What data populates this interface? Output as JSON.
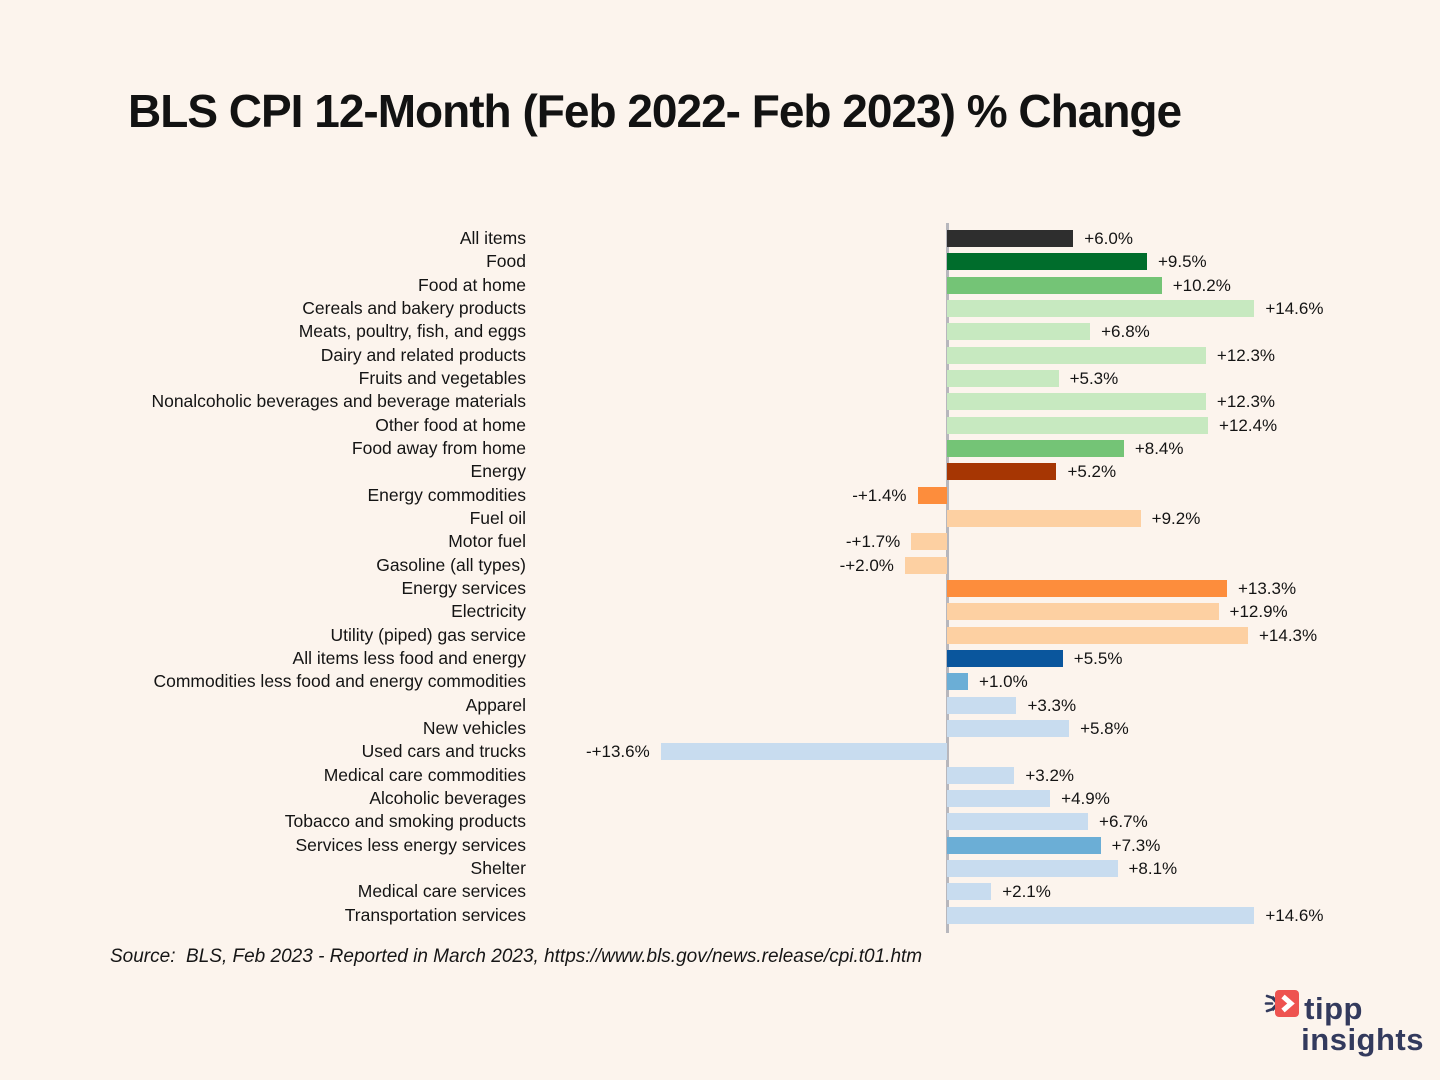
{
  "title": "BLS CPI 12-Month (Feb 2022- Feb 2023) % Change",
  "source": "Source:  BLS, Feb 2023 - Reported in March 2023, https://www.bls.gov/news.release/cpi.t01.htm",
  "logo": {
    "line1": "tipp",
    "line2": "insights",
    "icon": "fast-forward-arrow-icon",
    "icon_color": "#ee5350",
    "text_color": "#333a5d"
  },
  "colors": {
    "background": "#fcf4ed",
    "baseline": "#b7b7bd",
    "all_items_gray": "#2e2e2e",
    "dark_green": "#006d2c",
    "medium_green": "#74c476",
    "light_green": "#c7e9c0",
    "dark_orange": "#a63603",
    "medium_orange": "#fd8d3c",
    "light_orange": "#fdd0a2",
    "dark_blue": "#0a569d",
    "medium_blue": "#6baed6",
    "light_blue": "#c8dcef"
  },
  "chart_data": {
    "type": "bar",
    "orientation": "horizontal",
    "unit": "%",
    "title": "BLS CPI 12-Month (Feb 2022- Feb 2023) % Change",
    "xlabel": "",
    "ylabel": "",
    "xlim": [
      -14.5,
      15
    ],
    "baseline_value": 0,
    "grid": false,
    "legend": "none",
    "rows": [
      {
        "label": "All items",
        "value": 6.0,
        "display": "+6.0%",
        "color": "#2e2e2e"
      },
      {
        "label": "Food",
        "value": 9.5,
        "display": "+9.5%",
        "color": "#006d2c"
      },
      {
        "label": "Food at home",
        "value": 10.2,
        "display": "+10.2%",
        "color": "#74c476"
      },
      {
        "label": "Cereals and bakery products",
        "value": 14.6,
        "display": "+14.6%",
        "color": "#c7e9c0"
      },
      {
        "label": "Meats, poultry, fish, and eggs",
        "value": 6.8,
        "display": "+6.8%",
        "color": "#c7e9c0"
      },
      {
        "label": "Dairy and related products",
        "value": 12.3,
        "display": "+12.3%",
        "color": "#c7e9c0"
      },
      {
        "label": "Fruits and vegetables",
        "value": 5.3,
        "display": "+5.3%",
        "color": "#c7e9c0"
      },
      {
        "label": "Nonalcoholic beverages and beverage materials",
        "value": 12.3,
        "display": "+12.3%",
        "color": "#c7e9c0"
      },
      {
        "label": "Other food at home",
        "value": 12.4,
        "display": "+12.4%",
        "color": "#c7e9c0"
      },
      {
        "label": "Food away from home",
        "value": 8.4,
        "display": "+8.4%",
        "color": "#74c476"
      },
      {
        "label": "Energy",
        "value": 5.2,
        "display": "+5.2%",
        "color": "#a63603"
      },
      {
        "label": "Energy commodities",
        "value": -1.4,
        "display": "-+1.4%",
        "color": "#fd8d3c"
      },
      {
        "label": "Fuel oil",
        "value": 9.2,
        "display": "+9.2%",
        "color": "#fdd0a2"
      },
      {
        "label": "Motor fuel",
        "value": -1.7,
        "display": "-+1.7%",
        "color": "#fdd0a2"
      },
      {
        "label": "Gasoline (all types)",
        "value": -2.0,
        "display": "-+2.0%",
        "color": "#fdd0a2"
      },
      {
        "label": "Energy services",
        "value": 13.3,
        "display": "+13.3%",
        "color": "#fd8d3c"
      },
      {
        "label": "Electricity",
        "value": 12.9,
        "display": "+12.9%",
        "color": "#fdd0a2"
      },
      {
        "label": "Utility (piped) gas service",
        "value": 14.3,
        "display": "+14.3%",
        "color": "#fdd0a2"
      },
      {
        "label": "All items less food and energy",
        "value": 5.5,
        "display": "+5.5%",
        "color": "#0a569d"
      },
      {
        "label": "Commodities less food and energy commodities",
        "value": 1.0,
        "display": "+1.0%",
        "color": "#6baed6"
      },
      {
        "label": "Apparel",
        "value": 3.3,
        "display": "+3.3%",
        "color": "#c8dcef"
      },
      {
        "label": "New vehicles",
        "value": 5.8,
        "display": "+5.8%",
        "color": "#c8dcef"
      },
      {
        "label": "Used cars and trucks",
        "value": -13.6,
        "display": "-+13.6%",
        "color": "#c8dcef"
      },
      {
        "label": "Medical care commodities",
        "value": 3.2,
        "display": "+3.2%",
        "color": "#c8dcef"
      },
      {
        "label": "Alcoholic beverages",
        "value": 4.9,
        "display": "+4.9%",
        "color": "#c8dcef"
      },
      {
        "label": "Tobacco and smoking products",
        "value": 6.7,
        "display": "+6.7%",
        "color": "#c8dcef"
      },
      {
        "label": "Services less energy services",
        "value": 7.3,
        "display": "+7.3%",
        "color": "#6baed6"
      },
      {
        "label": "Shelter",
        "value": 8.1,
        "display": "+8.1%",
        "color": "#c8dcef"
      },
      {
        "label": "Medical care services",
        "value": 2.1,
        "display": "+2.1%",
        "color": "#c8dcef"
      },
      {
        "label": "Transportation services",
        "value": 14.6,
        "display": "+14.6%",
        "color": "#c8dcef"
      }
    ]
  }
}
